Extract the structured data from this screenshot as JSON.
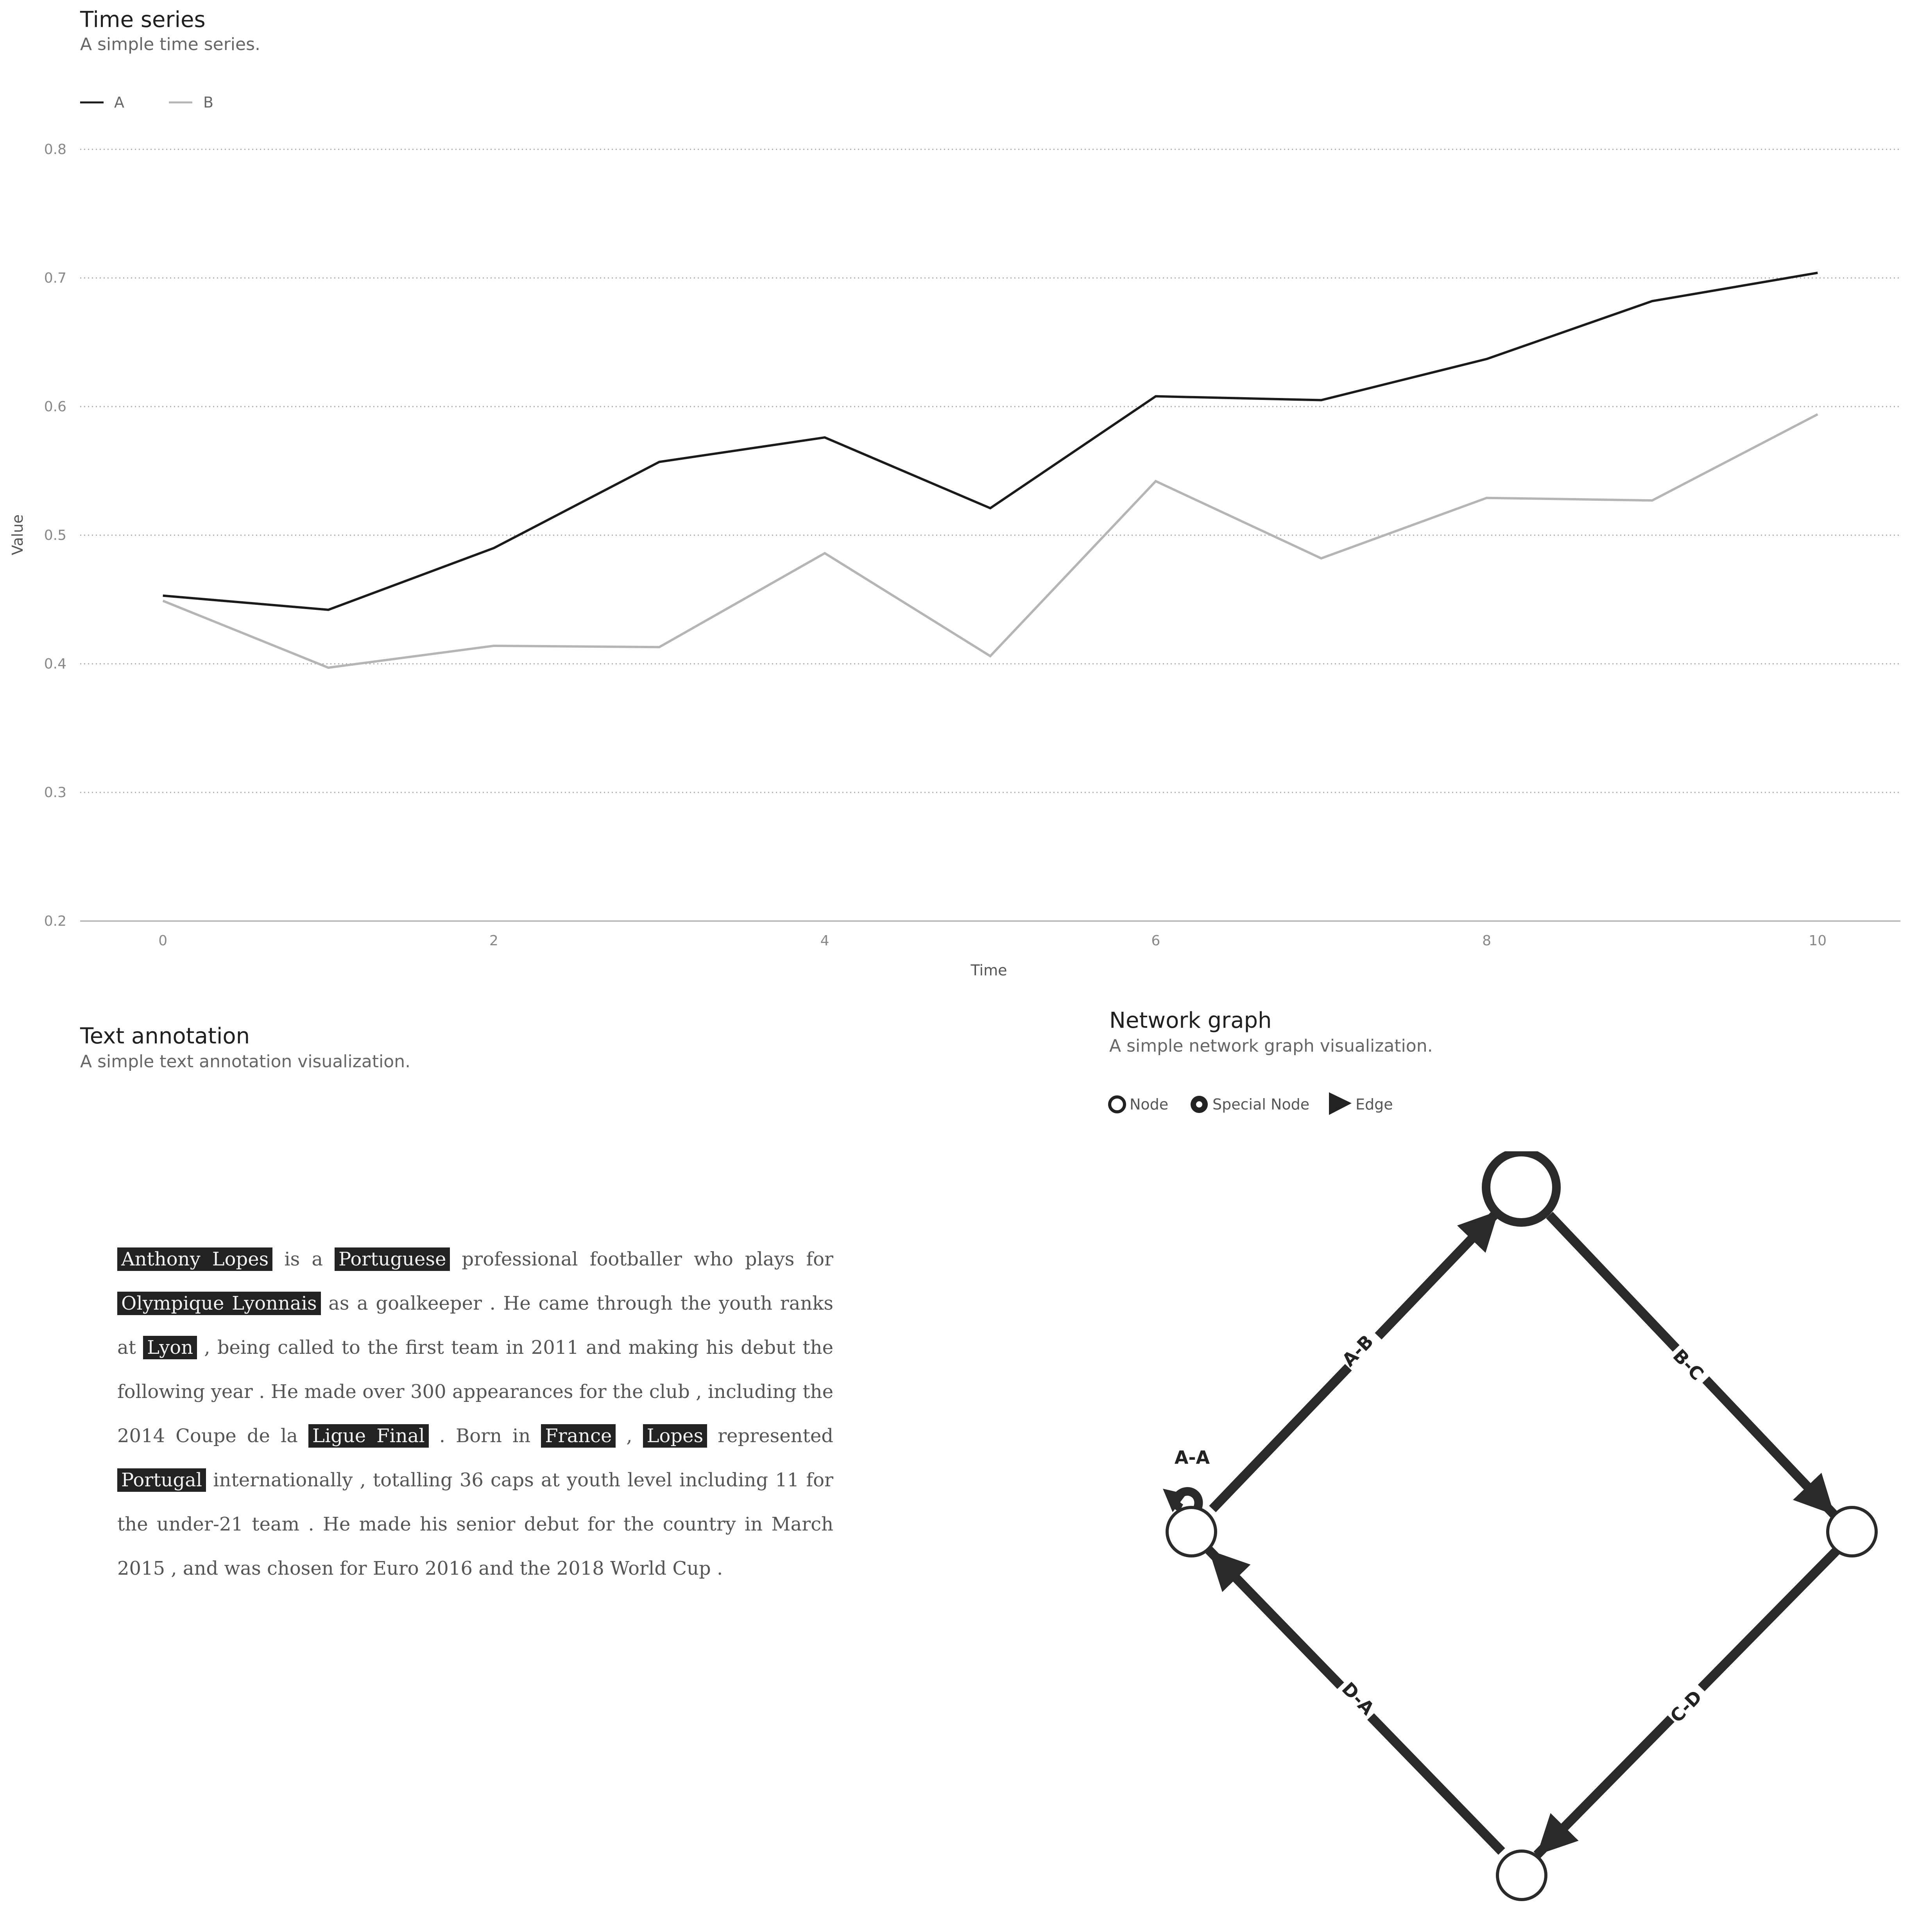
{
  "time_series": {
    "title": "Time series",
    "subtitle": "A simple time series.",
    "legend": [
      {
        "label": "A",
        "color": "#1a1a1a"
      },
      {
        "label": "B",
        "color": "#b5b5b5"
      }
    ]
  },
  "text_annotation": {
    "title": "Text annotation",
    "subtitle": "A simple text annotation visualization.",
    "segments": [
      {
        "text": "Anthony Lopes",
        "entity": true
      },
      {
        "text": " is a ",
        "entity": false
      },
      {
        "text": "Portuguese",
        "entity": true
      },
      {
        "text": " professional footballer who plays for ",
        "entity": false
      },
      {
        "text": "Olympique Lyonnais",
        "entity": true
      },
      {
        "text": " as a goalkeeper . He came through the youth ranks at ",
        "entity": false
      },
      {
        "text": "Lyon",
        "entity": true
      },
      {
        "text": " , being called to the first team in 2011 and making his debut the following year . He made over 300 appearances for the club , including the 2014 Coupe de la ",
        "entity": false
      },
      {
        "text": "Ligue Final",
        "entity": true
      },
      {
        "text": " . Born in ",
        "entity": false
      },
      {
        "text": "France",
        "entity": true
      },
      {
        "text": " , ",
        "entity": false
      },
      {
        "text": "Lopes",
        "entity": true
      },
      {
        "text": " represented ",
        "entity": false
      },
      {
        "text": "Portugal",
        "entity": true
      },
      {
        "text": " internationally , totalling 36 caps at youth level including 11 for the under-21 team . He made his senior debut for the country in March 2015 , and was chosen for Euro 2016 and the 2018 World Cup .",
        "entity": false
      }
    ]
  },
  "network_graph": {
    "title": "Network graph",
    "subtitle": "A simple network graph visualization.",
    "legend": {
      "node": "Node",
      "special_node": "Special Node",
      "edge": "Edge"
    },
    "edges": [
      {
        "label": "A-A"
      },
      {
        "label": "A-B"
      },
      {
        "label": "B-C"
      },
      {
        "label": "C-D"
      },
      {
        "label": "D-A"
      }
    ]
  },
  "chart_data": [
    {
      "type": "line",
      "title": "Time series",
      "subtitle": "A simple time series.",
      "xlabel": "Time",
      "ylabel": "Value",
      "x": [
        0,
        1,
        2,
        3,
        4,
        5,
        6,
        7,
        8,
        9,
        10
      ],
      "series": [
        {
          "name": "A",
          "color": "#1a1a1a",
          "values": [
            0.453,
            0.442,
            0.49,
            0.557,
            0.576,
            0.521,
            0.608,
            0.605,
            0.637,
            0.682,
            0.704
          ]
        },
        {
          "name": "B",
          "color": "#b5b5b5",
          "values": [
            0.449,
            0.397,
            0.414,
            0.413,
            0.486,
            0.406,
            0.542,
            0.482,
            0.529,
            0.527,
            0.594
          ]
        }
      ],
      "xlim": [
        -0.5,
        10.5
      ],
      "ylim": [
        0.2,
        0.8
      ],
      "xticks": [
        "0",
        "2",
        "4",
        "6",
        "8",
        "10"
      ],
      "yticks": [
        "0.2",
        "0.3",
        "0.4",
        "0.5",
        "0.6",
        "0.7",
        "0.8"
      ],
      "grid": true,
      "legend_position": "top-left"
    }
  ]
}
